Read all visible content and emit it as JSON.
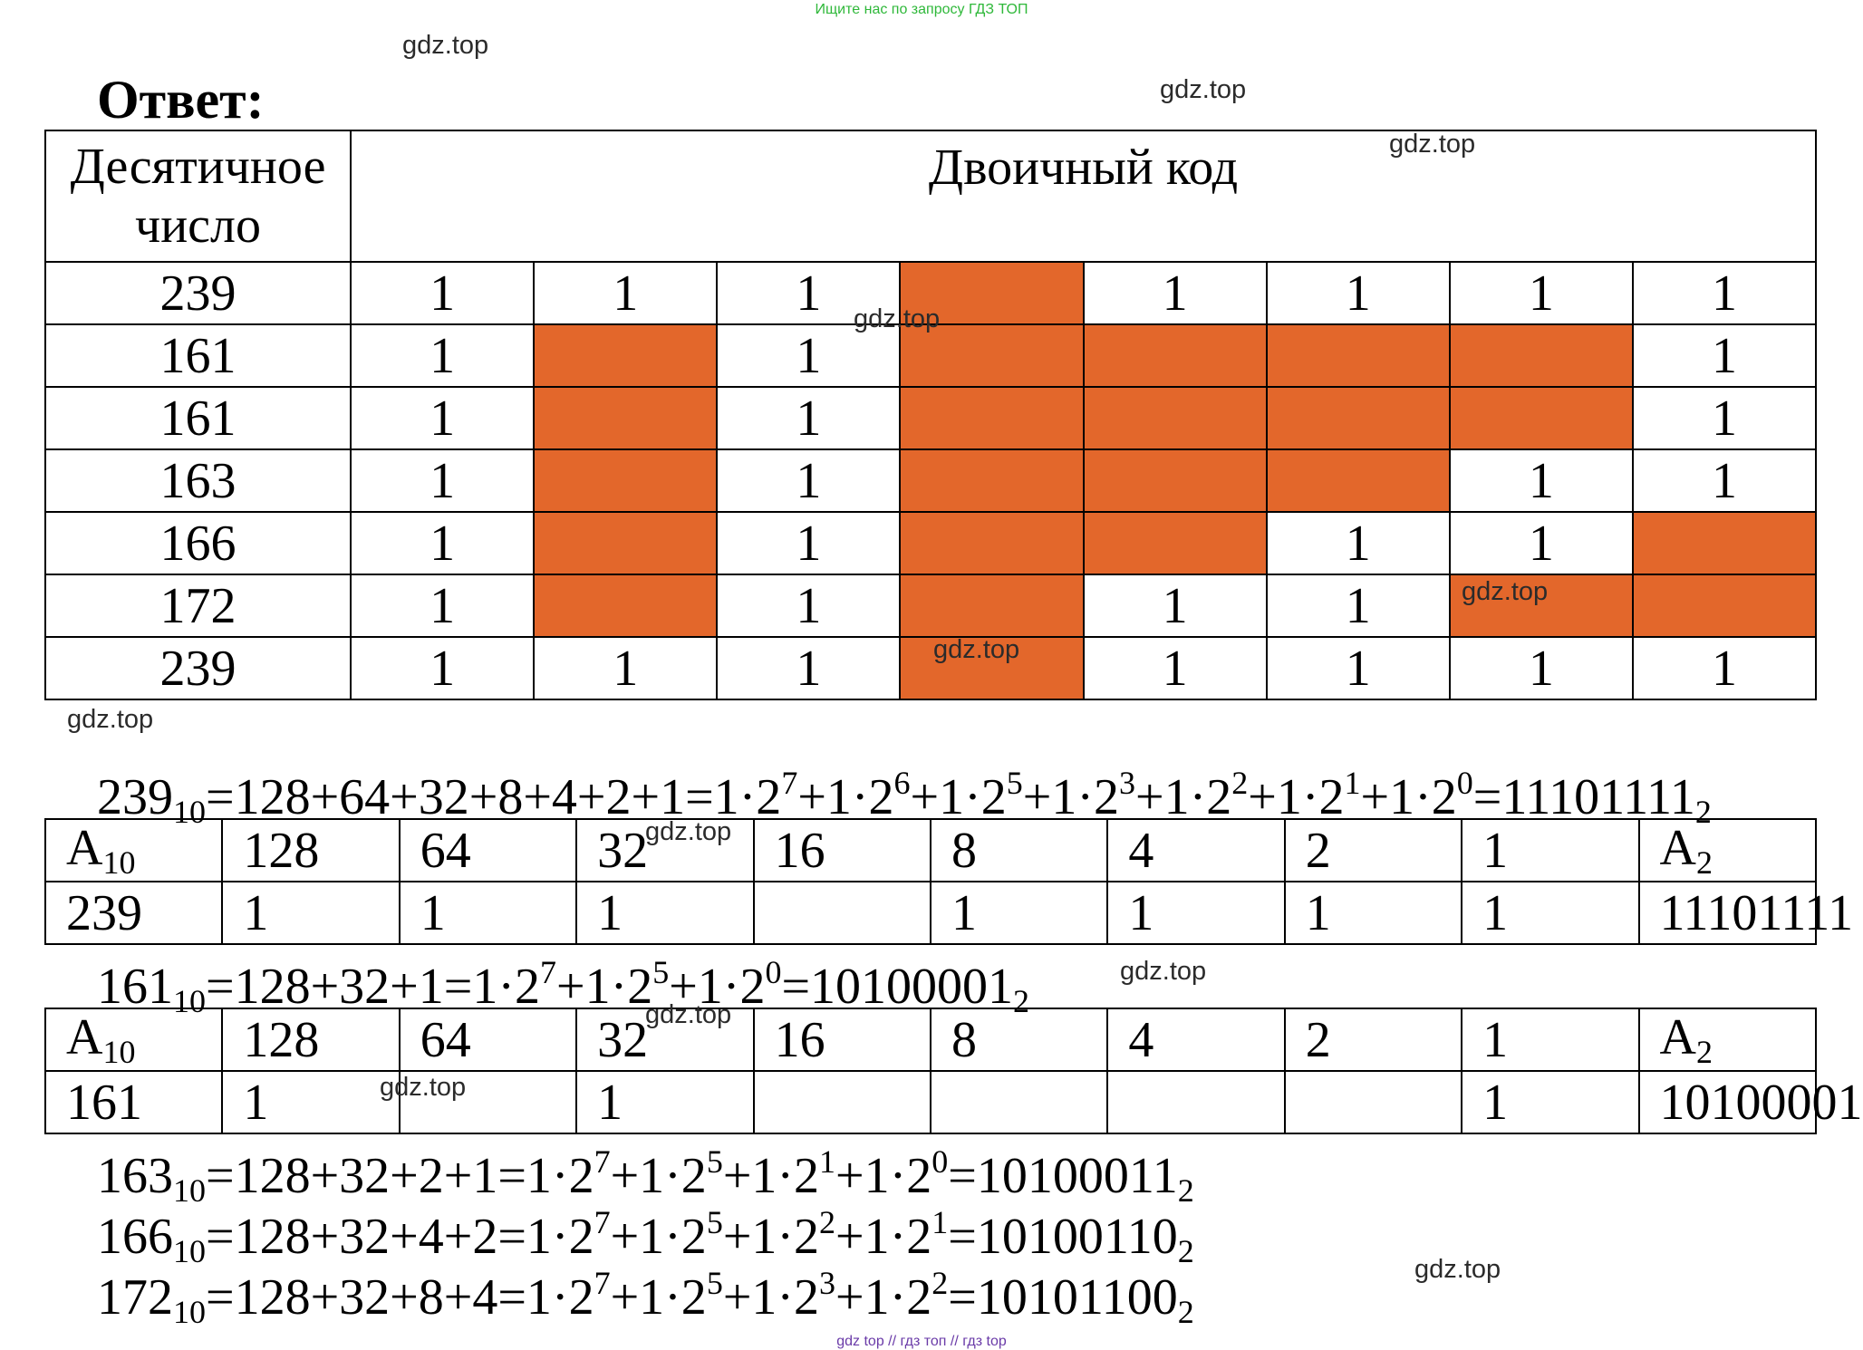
{
  "banner": "Ищите нас по запросу ГДЗ ТОП",
  "watermark": "gdz.top",
  "answer_label": "Ответ:",
  "main_table": {
    "header_decimal": "Десятичное число",
    "header_binary": "Двоичный код",
    "rows": [
      {
        "decimal": "239",
        "bits": [
          "1",
          "1",
          "1",
          "",
          "1",
          "1",
          "1",
          "1"
        ]
      },
      {
        "decimal": "161",
        "bits": [
          "1",
          "",
          "1",
          "",
          "",
          "",
          "",
          "1"
        ]
      },
      {
        "decimal": "161",
        "bits": [
          "1",
          "",
          "1",
          "",
          "",
          "",
          "",
          "1"
        ]
      },
      {
        "decimal": "163",
        "bits": [
          "1",
          "",
          "1",
          "",
          "",
          "",
          "1",
          "1"
        ]
      },
      {
        "decimal": "166",
        "bits": [
          "1",
          "",
          "1",
          "",
          "",
          "1",
          "1",
          ""
        ]
      },
      {
        "decimal": "172",
        "bits": [
          "1",
          "",
          "1",
          "",
          "1",
          "1",
          "",
          ""
        ]
      },
      {
        "decimal": "239",
        "bits": [
          "1",
          "1",
          "1",
          "",
          "1",
          "1",
          "1",
          "1"
        ]
      }
    ],
    "fill_color": "#e3672b"
  },
  "formulas": {
    "f239": {
      "n": "239",
      "b": "10",
      "sum": "=128+64+32+8+4+2+1=",
      "bin": "11101111",
      "bb": "2"
    },
    "f161": {
      "n": "161",
      "b": "10",
      "sum": "=128+32+1=",
      "bin": "10100001",
      "bb": "2"
    },
    "f163": {
      "n": "163",
      "b": "10",
      "sum": "=128+32+2+1=",
      "bin": "10100011",
      "bb": "2"
    },
    "f166": {
      "n": "166",
      "b": "10",
      "sum": "=128+32+4+2=",
      "bin": "10100110",
      "bb": "2"
    },
    "f172": {
      "n": "172",
      "b": "10",
      "sum": "=128+32+8+4=",
      "bin": "10101100",
      "bb": "2"
    }
  },
  "power_tables": {
    "header": {
      "a": "A",
      "a_sub": "10",
      "weights": [
        "128",
        "64",
        "32",
        "16",
        "8",
        "4",
        "2",
        "1"
      ],
      "res": "A",
      "res_sub": "2"
    },
    "t239": {
      "value": "239",
      "bits": [
        "1",
        "1",
        "1",
        "",
        "1",
        "1",
        "1",
        "1"
      ],
      "result": "11101111"
    },
    "t161": {
      "value": "161",
      "bits": [
        "1",
        "",
        "1",
        "",
        "",
        "",
        "",
        "1"
      ],
      "result": "10100001"
    }
  },
  "footer": {
    "a": "gdz top",
    "sep": "//",
    "b": "гдз топ",
    "c": "гдз top"
  }
}
